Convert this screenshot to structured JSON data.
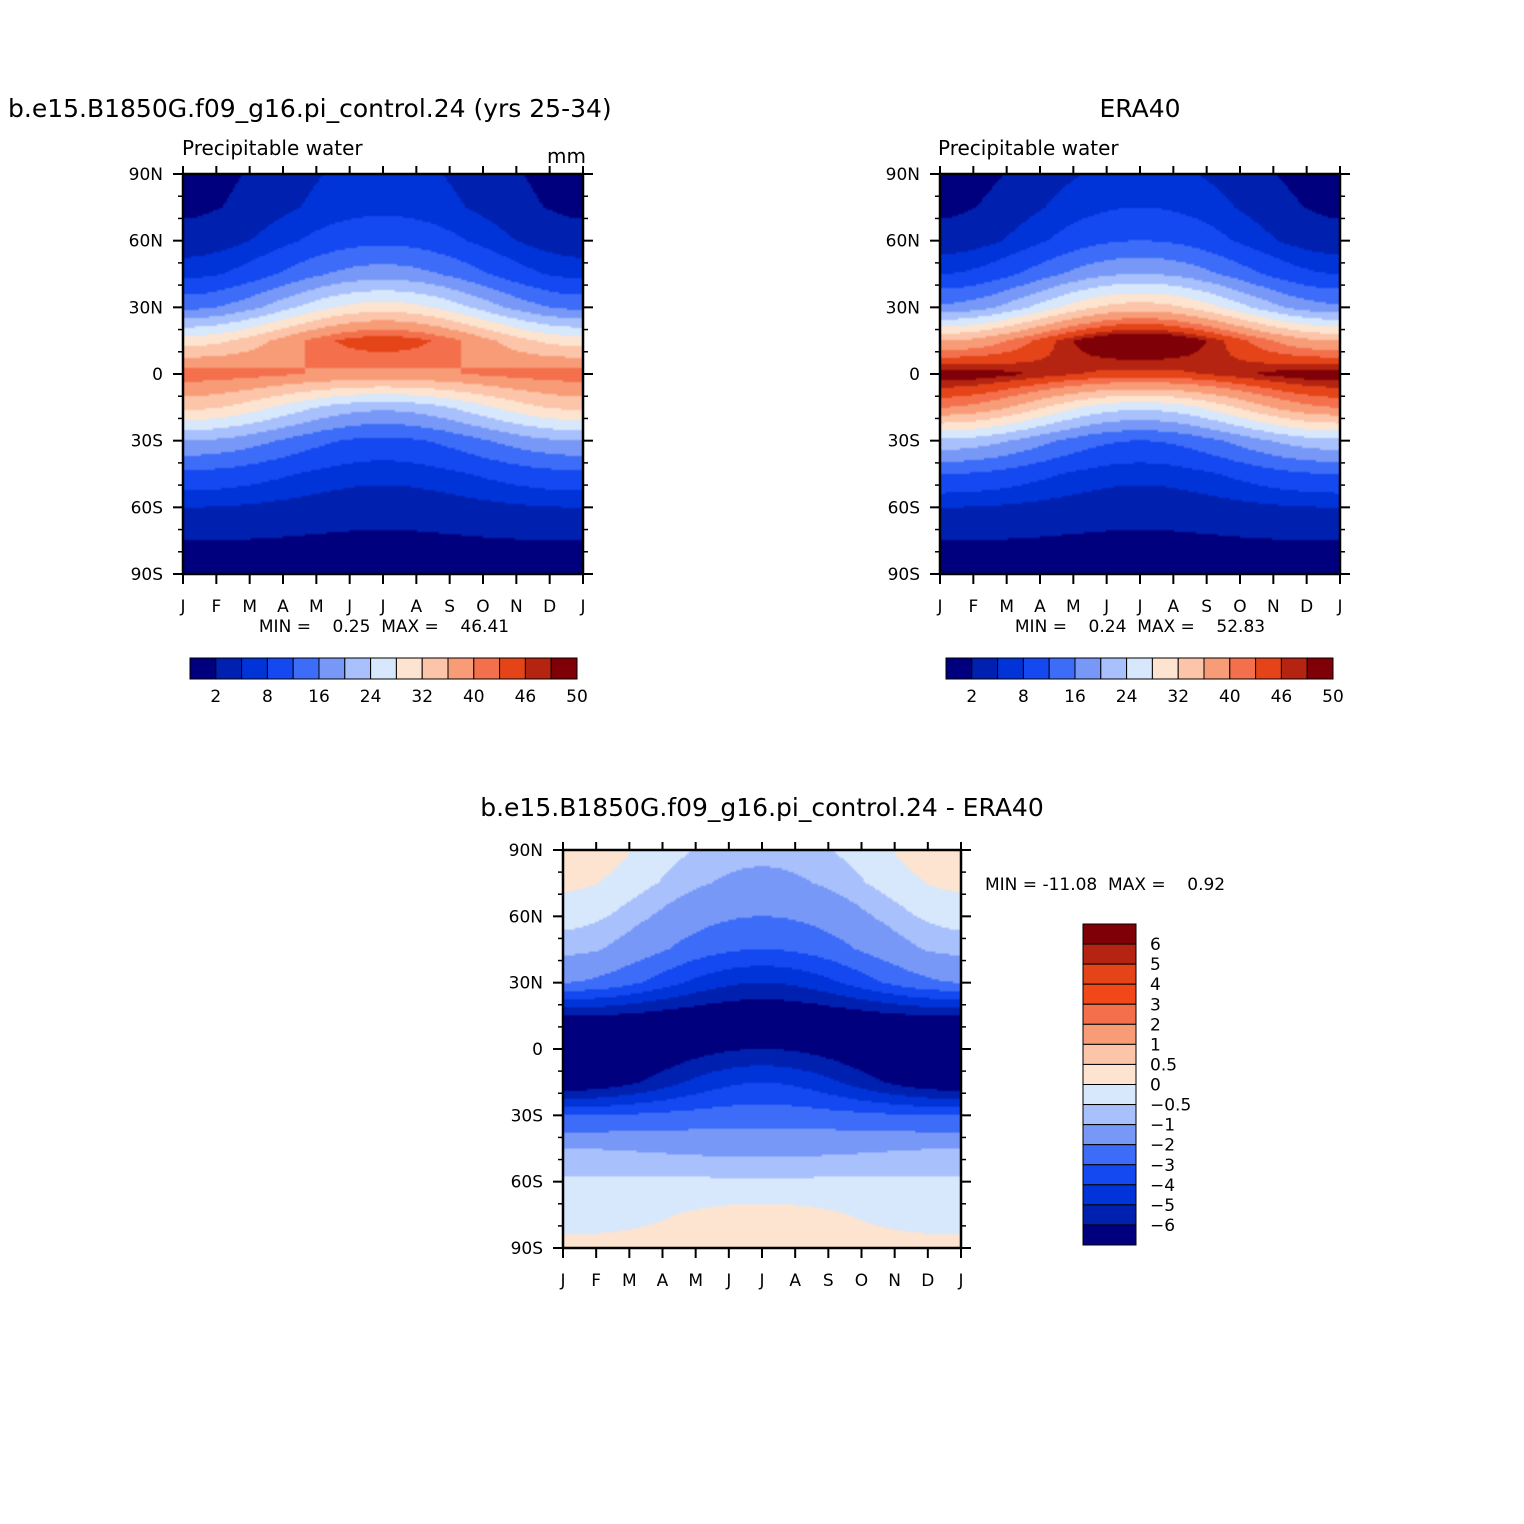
{
  "chart_data": [
    {
      "type": "heatmap",
      "title": "b.e15.B1850G.f09_g16.pi_control.24 (yrs 25-34)",
      "subtitle_left": "Precipitable water",
      "subtitle_right": "mm",
      "xticks": [
        "J",
        "F",
        "M",
        "A",
        "M",
        "J",
        "J",
        "A",
        "S",
        "O",
        "N",
        "D",
        "J"
      ],
      "yticks": [
        "90N",
        "60N",
        "30N",
        "0",
        "30S",
        "60S",
        "90S"
      ],
      "ylim": [
        -90,
        90
      ],
      "stats_label": "MIN =    0.25  MAX =    46.41",
      "min": 0.25,
      "max": 46.41,
      "colorbar": {
        "orientation": "horizontal",
        "labels": [
          "2",
          "8",
          "16",
          "24",
          "32",
          "40",
          "46",
          "50"
        ],
        "colors": [
          "#00007f",
          "#0020b0",
          "#0034d8",
          "#1448f0",
          "#3c6cf8",
          "#7898f8",
          "#a8c0fc",
          "#d8e8fc",
          "#fde4d0",
          "#fcc4a8",
          "#f89c78",
          "#f4704c",
          "#e44418",
          "#b42410",
          "#800008"
        ]
      },
      "zonal_profile": {
        "lat": [
          -90,
          -75,
          -60,
          -45,
          -30,
          -15,
          0,
          15,
          30,
          45,
          60,
          75,
          90
        ],
        "jan": [
          1,
          2,
          5,
          11,
          20,
          33,
          42,
          30,
          15,
          7,
          3,
          1.5,
          1
        ],
        "jul": [
          1,
          1.5,
          3,
          6,
          11,
          21,
          39,
          45,
          30,
          18,
          11,
          7,
          6
        ]
      },
      "peak_lat_jan": -6,
      "peak_lat_jul": 9
    },
    {
      "type": "heatmap",
      "title": "ERA40",
      "subtitle_left": "Precipitable water",
      "xticks": [
        "J",
        "F",
        "M",
        "A",
        "M",
        "J",
        "J",
        "A",
        "S",
        "O",
        "N",
        "D",
        "J"
      ],
      "yticks": [
        "90N",
        "60N",
        "30N",
        "0",
        "30S",
        "60S",
        "90S"
      ],
      "ylim": [
        -90,
        90
      ],
      "stats_label": "MIN =    0.24  MAX =    52.83",
      "min": 0.24,
      "max": 52.83,
      "colorbar": {
        "orientation": "horizontal",
        "labels": [
          "2",
          "8",
          "16",
          "24",
          "32",
          "40",
          "46",
          "50"
        ],
        "colors": [
          "#00007f",
          "#0020b0",
          "#0034d8",
          "#1448f0",
          "#3c6cf8",
          "#7898f8",
          "#a8c0fc",
          "#d8e8fc",
          "#fde4d0",
          "#fcc4a8",
          "#f89c78",
          "#f4704c",
          "#e44418",
          "#b42410",
          "#800008"
        ]
      },
      "zonal_profile": {
        "lat": [
          -90,
          -75,
          -60,
          -45,
          -30,
          -15,
          0,
          15,
          30,
          45,
          60,
          75,
          90
        ],
        "jan": [
          1,
          2,
          5,
          12,
          23,
          40,
          50,
          36,
          17,
          8,
          3,
          1.5,
          0.8
        ],
        "jul": [
          1,
          1.5,
          3,
          6,
          12,
          25,
          45,
          52,
          34,
          20,
          12,
          8,
          6
        ]
      },
      "peak_lat_jan": -6,
      "peak_lat_jul": 9
    },
    {
      "type": "heatmap",
      "title": "b.e15.B1850G.f09_g16.pi_control.24 - ERA40",
      "xticks": [
        "J",
        "F",
        "M",
        "A",
        "M",
        "J",
        "J",
        "A",
        "S",
        "O",
        "N",
        "D",
        "J"
      ],
      "yticks": [
        "90N",
        "60N",
        "30N",
        "0",
        "30S",
        "60S",
        "90S"
      ],
      "ylim": [
        -90,
        90
      ],
      "stats_label": "MIN = -11.08  MAX =    0.92",
      "min": -11.08,
      "max": 0.92,
      "colorbar": {
        "orientation": "vertical",
        "labels": [
          "6",
          "5",
          "4",
          "3",
          "2",
          "1",
          "0.5",
          "0",
          "-0.5",
          "-1",
          "-2",
          "-3",
          "-4",
          "-5",
          "-6"
        ],
        "colors": [
          "#800008",
          "#b42410",
          "#e44418",
          "#f04818",
          "#f4704c",
          "#f89c78",
          "#fcc4a8",
          "#fde4d0",
          "#d8e8fc",
          "#a8c0fc",
          "#7898f8",
          "#3c6cf8",
          "#1448f0",
          "#0034d8",
          "#0020b0",
          "#00007f"
        ]
      },
      "zonal_profile": {
        "lat": [
          -90,
          -75,
          -60,
          -45,
          -30,
          -15,
          0,
          15,
          30,
          45,
          60,
          75,
          90
        ],
        "jan": [
          0.2,
          -0.3,
          -0.4,
          -1,
          -3,
          -7,
          -8,
          -6,
          -2,
          -0.8,
          -0.3,
          0.1,
          0.3
        ],
        "jul": [
          0.3,
          0.2,
          -0.4,
          -1.2,
          -2.5,
          -4,
          -6,
          -7,
          -5,
          -3,
          -2,
          -1.2,
          -0.8
        ]
      }
    }
  ]
}
